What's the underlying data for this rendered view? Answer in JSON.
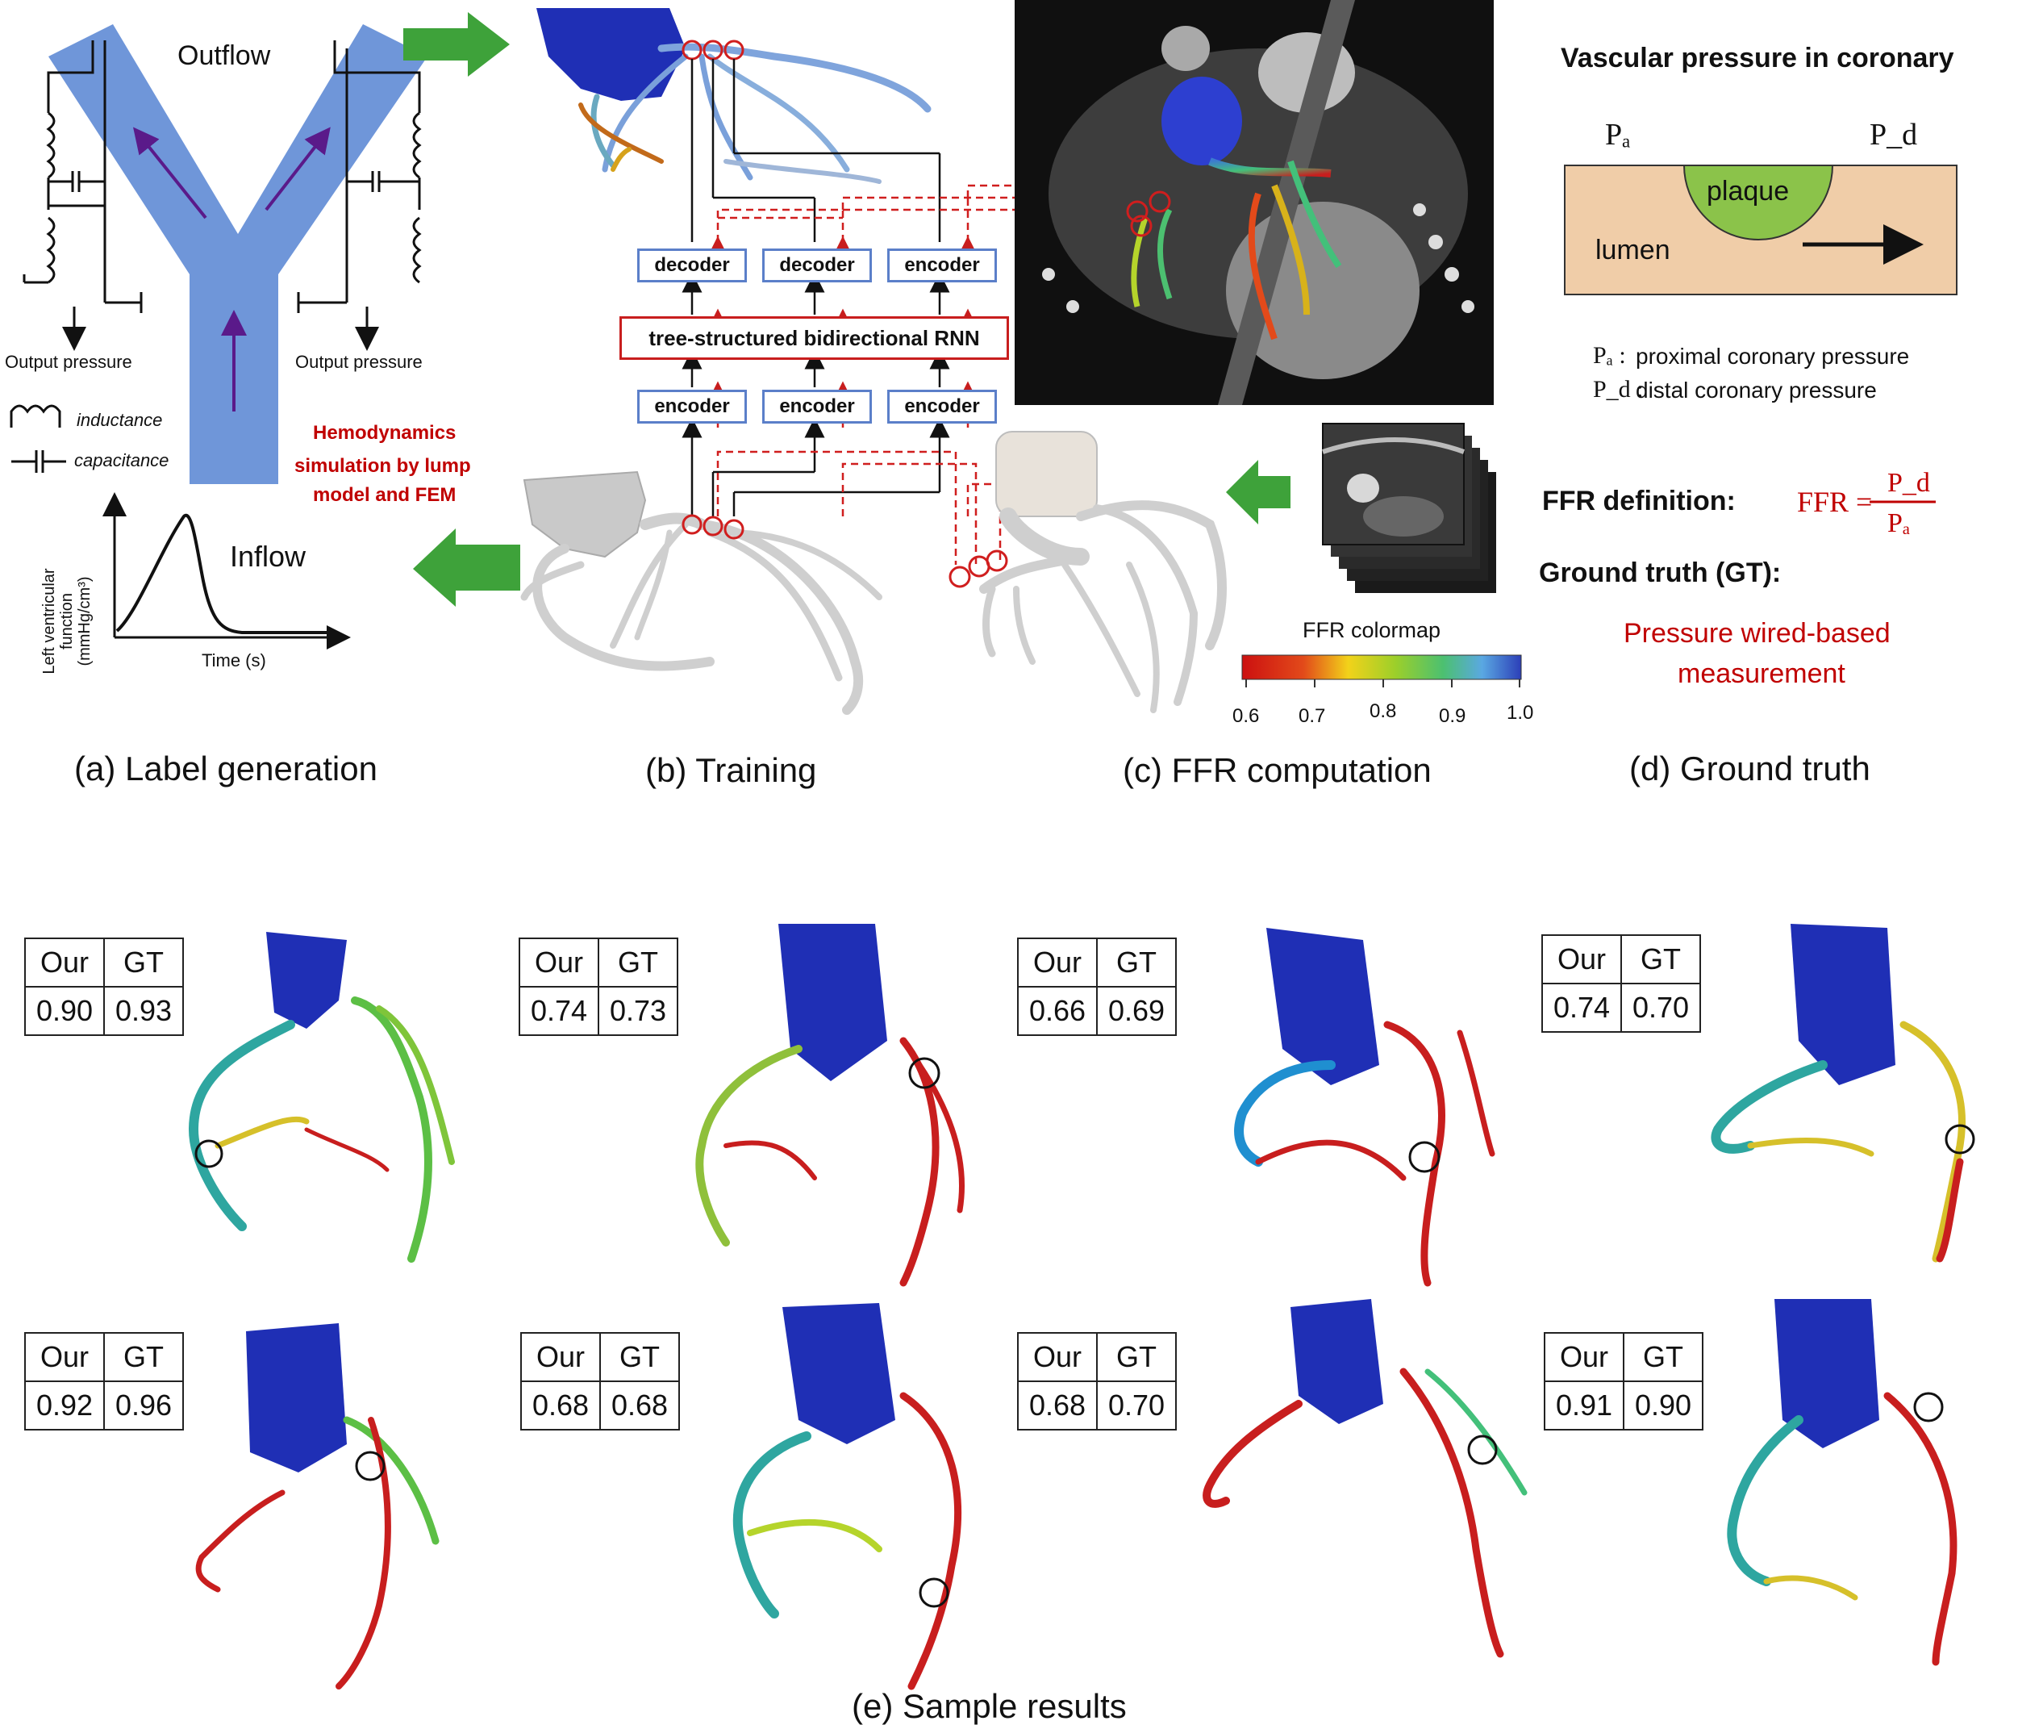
{
  "panel_a": {
    "outflow": "Outflow",
    "output_pressure_left": "Output pressure",
    "output_pressure_right": "Output pressure",
    "inductance": "inductance",
    "capacitance": "capacitance",
    "hemodynamics": [
      "Hemodynamics",
      "simulation by lump",
      "model and FEM"
    ],
    "inflow": "Inflow",
    "lv_ylabel": [
      "Left ventricular",
      "function",
      "(mmHg/cm³)"
    ],
    "time_label": "Time (s)"
  },
  "panel_b": {
    "decoder_1": "decoder",
    "decoder_2": "decoder",
    "encoder_top": "encoder",
    "rnn_label": "tree-structured bidirectional RNN",
    "encoder_1": "encoder",
    "encoder_2": "encoder",
    "encoder_3": "encoder"
  },
  "panel_c": {
    "colormap_title": "FFR colormap",
    "ticks": [
      "0.6",
      "0.7",
      "0.8",
      "0.9",
      "1.0"
    ]
  },
  "panel_d": {
    "title": "Vascular pressure in coronary",
    "pa": "Pₐ",
    "pd": "P_d",
    "plaque": "plaque",
    "lumen": "lumen",
    "pa_def_sym": "Pₐ :",
    "pa_def": "proximal coronary pressure",
    "pd_def_sym": "P_d :",
    "pd_def": "distal coronary pressure",
    "ffr_def_label": "FFR definition:",
    "ffr_lhs": "FFR =",
    "ffr_num": "P_d",
    "ffr_den": "Pₐ",
    "gt_label": "Ground truth (GT):",
    "gt_value": [
      "Pressure wired-based",
      "measurement"
    ]
  },
  "captions": {
    "a": "(a) Label generation",
    "b": "(b) Training",
    "c": "(c) FFR computation",
    "d": "(d) Ground truth",
    "e": "(e) Sample results"
  },
  "results": {
    "header": [
      "Our",
      "GT"
    ],
    "samples": [
      {
        "our": "0.90",
        "gt": "0.93"
      },
      {
        "our": "0.74",
        "gt": "0.73"
      },
      {
        "our": "0.66",
        "gt": "0.69"
      },
      {
        "our": "0.74",
        "gt": "0.70"
      },
      {
        "our": "0.92",
        "gt": "0.96"
      },
      {
        "our": "0.68",
        "gt": "0.68"
      },
      {
        "our": "0.68",
        "gt": "0.70"
      },
      {
        "our": "0.91",
        "gt": "0.90"
      }
    ]
  },
  "colors": {
    "aorta": "#1f2fb5",
    "accent_red": "#c00000",
    "arrow_green": "#3ea23a",
    "box_blue": "#5b7fc9",
    "vessel_blue": "#6f96d9",
    "lumen": "#f0cda8",
    "plaque": "#8bc34a"
  }
}
